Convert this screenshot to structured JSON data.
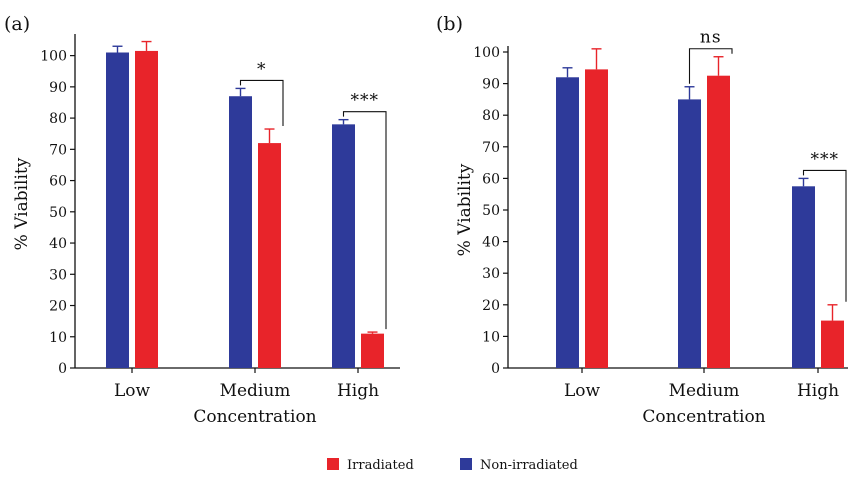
{
  "colors": {
    "irradiated": "#e8242a",
    "non_irradiated": "#2e3a9a",
    "axis": "#111111"
  },
  "chart_data": [
    {
      "type": "bar",
      "panel_label": "(a)",
      "categories": [
        "Low",
        "Medium",
        "High"
      ],
      "xlabel": "Concentration",
      "ylabel": "% Viability",
      "ylim": [
        0,
        105
      ],
      "yticks": [
        0,
        10,
        20,
        30,
        40,
        50,
        60,
        70,
        80,
        90,
        100
      ],
      "grid": false,
      "series": [
        {
          "name": "Non-irradiated",
          "values": [
            101,
            87,
            78
          ],
          "errors": [
            2,
            2.5,
            1.5
          ]
        },
        {
          "name": "Irradiated",
          "values": [
            101.5,
            72,
            11
          ],
          "errors": [
            3,
            4.5,
            0.5
          ]
        }
      ],
      "significance": [
        {
          "category": "Medium",
          "label": "*"
        },
        {
          "category": "High",
          "label": "***"
        }
      ]
    },
    {
      "type": "bar",
      "panel_label": "(b)",
      "categories": [
        "Low",
        "Medium",
        "High"
      ],
      "xlabel": "Concentration",
      "ylabel": "% Viability",
      "ylim": [
        0,
        100
      ],
      "yticks": [
        0,
        10,
        20,
        30,
        40,
        50,
        60,
        70,
        80,
        90,
        100
      ],
      "grid": false,
      "series": [
        {
          "name": "Non-irradiated",
          "values": [
            92,
            85,
            57.5
          ],
          "errors": [
            3,
            4,
            2.5
          ]
        },
        {
          "name": "Irradiated",
          "values": [
            94.5,
            92.5,
            15
          ],
          "errors": [
            6.5,
            6,
            5
          ]
        }
      ],
      "significance": [
        {
          "category": "Medium",
          "label": "ns"
        },
        {
          "category": "High",
          "label": "***"
        }
      ]
    }
  ],
  "legend": {
    "placement": "bottom-center",
    "items": [
      {
        "label": "Irradiated",
        "color": "#e8242a"
      },
      {
        "label": "Non-irradiated",
        "color": "#2e3a9a"
      }
    ]
  }
}
